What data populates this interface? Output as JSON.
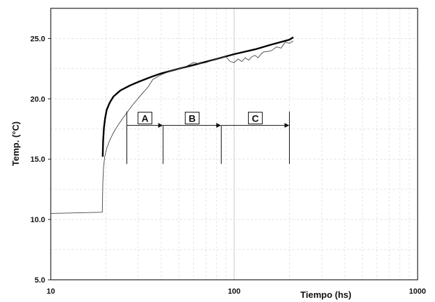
{
  "chart_data": {
    "type": "line",
    "xscale": "log",
    "xlim": [
      10,
      1000
    ],
    "ylim": [
      5,
      27.5
    ],
    "xlabel": "Tiempo (hs)",
    "ylabel": "Temp. (°C)",
    "xticks": [
      "10",
      "100",
      "1000"
    ],
    "yticks": [
      "5.0",
      "10.0",
      "15.0",
      "20.0",
      "25.0"
    ],
    "grid": true,
    "series": [
      {
        "style": "thick-fit",
        "x": [
          19.2,
          19.3,
          19.5,
          19.8,
          20.2,
          21,
          22,
          24,
          27,
          30,
          35,
          40,
          50,
          60,
          80,
          100,
          130,
          160,
          200,
          210
        ],
        "y": [
          15.2,
          16.5,
          17.6,
          18.4,
          19.1,
          19.7,
          20.2,
          20.7,
          21.1,
          21.4,
          21.8,
          22.1,
          22.5,
          22.8,
          23.3,
          23.7,
          24.1,
          24.5,
          24.9,
          25.1
        ]
      },
      {
        "style": "measured",
        "x": [
          10,
          19.1,
          19.15,
          19.25,
          19.4,
          19.7,
          20.2,
          21,
          22,
          23,
          25,
          28,
          31,
          34,
          36,
          40,
          45,
          50,
          55,
          60,
          65,
          70,
          80,
          90,
          95,
          100,
          105,
          110,
          115,
          120,
          125,
          130,
          135,
          140,
          145,
          150,
          160,
          170,
          180,
          190,
          200,
          210
        ],
        "y": [
          10.5,
          10.6,
          11.5,
          13.2,
          14.3,
          15.2,
          15.9,
          16.6,
          17.2,
          17.7,
          18.5,
          19.5,
          20.3,
          21.0,
          21.6,
          22.0,
          22.3,
          22.5,
          22.7,
          23.0,
          22.9,
          23.0,
          23.3,
          23.5,
          23.1,
          23.0,
          23.3,
          23.1,
          23.4,
          23.2,
          23.5,
          23.6,
          23.4,
          23.7,
          23.9,
          23.9,
          24.0,
          24.3,
          24.2,
          24.7,
          24.6,
          24.8
        ]
      }
    ],
    "zones": [
      {
        "label": "A",
        "x_start": 26,
        "x_end": 41
      },
      {
        "label": "B",
        "x_start": 41,
        "x_end": 85
      },
      {
        "label": "C",
        "x_start": 85,
        "x_end": 200
      }
    ],
    "zone_arrow_y": 17.8,
    "zone_line_bottom_y": 14.6
  }
}
